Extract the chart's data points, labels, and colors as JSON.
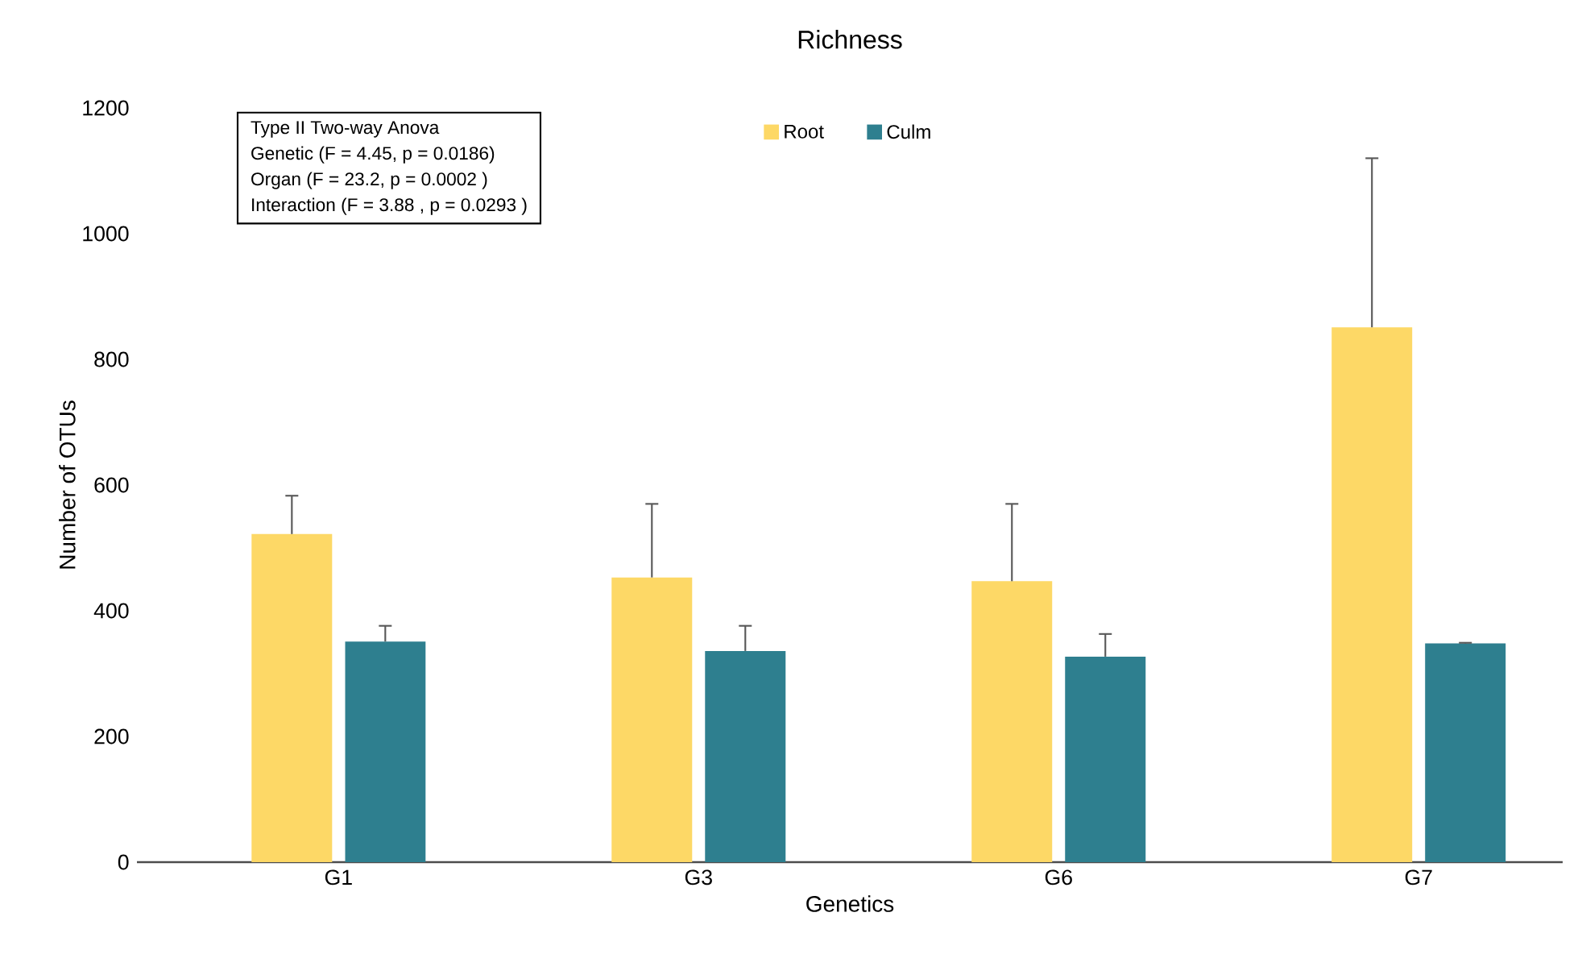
{
  "chart_data": {
    "type": "bar",
    "title": "Richness",
    "xlabel": "Genetics",
    "ylabel": "Number of OTUs",
    "categories": [
      "G1",
      "G3",
      "G6",
      "G7"
    ],
    "series": [
      {
        "name": "Root",
        "color": "#fdd866",
        "values": [
          522,
          453,
          447,
          851
        ],
        "errors": [
          [
            522,
            583
          ],
          [
            453,
            570
          ],
          [
            447,
            570
          ],
          [
            851,
            1120
          ]
        ]
      },
      {
        "name": "Culm",
        "color": "#2e7f8f",
        "values": [
          351,
          336,
          327,
          348
        ],
        "errors": [
          [
            351,
            376
          ],
          [
            336,
            376
          ],
          [
            327,
            363
          ],
          [
            348,
            349
          ]
        ]
      }
    ],
    "ylim": [
      0,
      1200
    ],
    "yticks": [
      0,
      200,
      400,
      600,
      800,
      1000,
      1200
    ],
    "legend": "top",
    "grid": false,
    "annotations": [
      "Type II Two-way Anova",
      "Genetic (F = 4.45, p = 0.0186)",
      "Organ (F = 23.2, p = 0.0002 )",
      "Interaction (F = 3.88 , p = 0.0293 )"
    ]
  }
}
